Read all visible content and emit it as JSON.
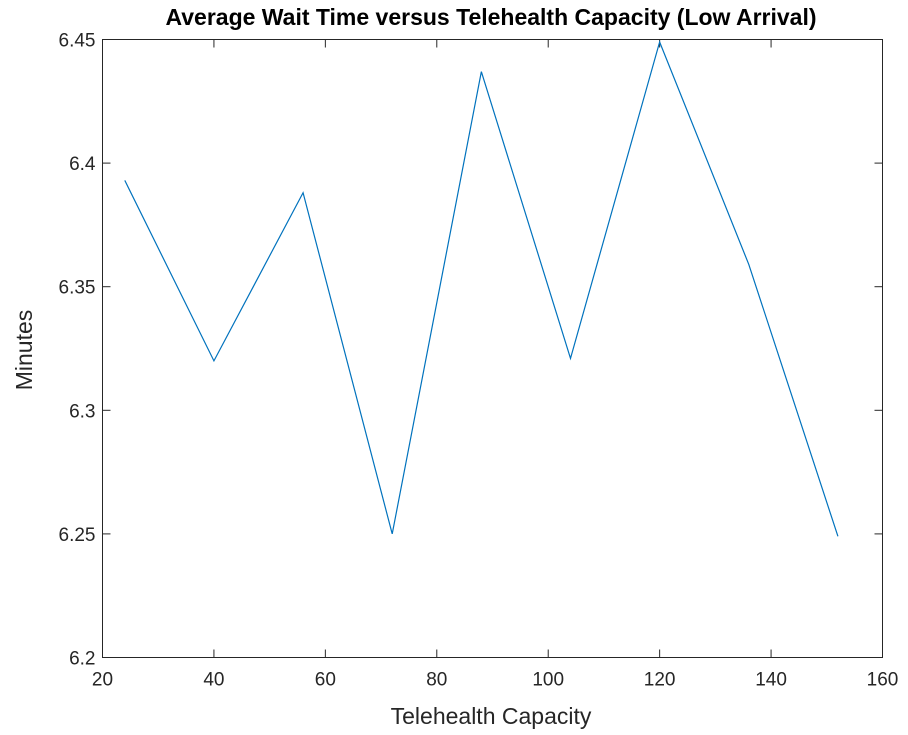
{
  "chart_data": {
    "type": "line",
    "title": "Average Wait Time versus Telehealth Capacity (Low Arrival)",
    "xlabel": "Telehealth Capacity",
    "ylabel": "Minutes",
    "xlim": [
      20,
      160
    ],
    "ylim": [
      6.2,
      6.45
    ],
    "x_ticks": [
      20,
      40,
      60,
      80,
      100,
      120,
      140,
      160
    ],
    "x_tick_labels": [
      "20",
      "40",
      "60",
      "80",
      "100",
      "120",
      "140",
      "160"
    ],
    "y_ticks": [
      6.2,
      6.25,
      6.3,
      6.35,
      6.4,
      6.45
    ],
    "y_tick_labels": [
      "6.2",
      "6.25",
      "6.3",
      "6.35",
      "6.4",
      "6.45"
    ],
    "grid": false,
    "series": [
      {
        "x": [
          24,
          40,
          56,
          72,
          88,
          104,
          120,
          136,
          152
        ],
        "y": [
          6.393,
          6.32,
          6.388,
          6.25,
          6.437,
          6.321,
          6.449,
          6.359,
          6.249
        ],
        "color": "#0072BD"
      }
    ]
  }
}
